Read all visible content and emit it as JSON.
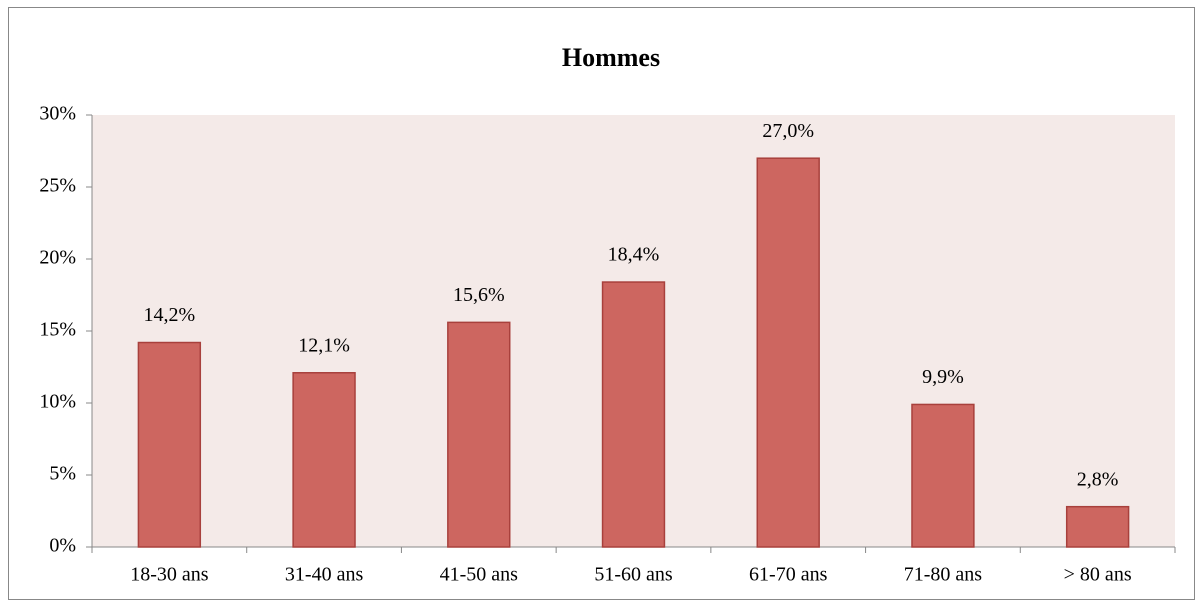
{
  "chart_data": {
    "type": "bar",
    "title": "Hommes",
    "categories": [
      "18-30 ans",
      "31-40 ans",
      "41-50 ans",
      "51-60 ans",
      "61-70 ans",
      "71-80 ans",
      "> 80 ans"
    ],
    "values": [
      14.2,
      12.1,
      15.6,
      18.4,
      27.0,
      9.9,
      2.8
    ],
    "value_labels": [
      "14,2%",
      "12,1%",
      "15,6%",
      "18,4%",
      "27,0%",
      "9,9%",
      "2,8%"
    ],
    "color": "#cd6660",
    "ylim": [
      0,
      30
    ],
    "yticks": [
      {
        "value": 0,
        "label": "0%"
      },
      {
        "value": 5,
        "label": "5%"
      },
      {
        "value": 10,
        "label": "10%"
      },
      {
        "value": 15,
        "label": "15%"
      },
      {
        "value": 20,
        "label": "20%"
      },
      {
        "value": 25,
        "label": "25%"
      },
      {
        "value": 30,
        "label": "30%"
      }
    ],
    "grid": false
  }
}
